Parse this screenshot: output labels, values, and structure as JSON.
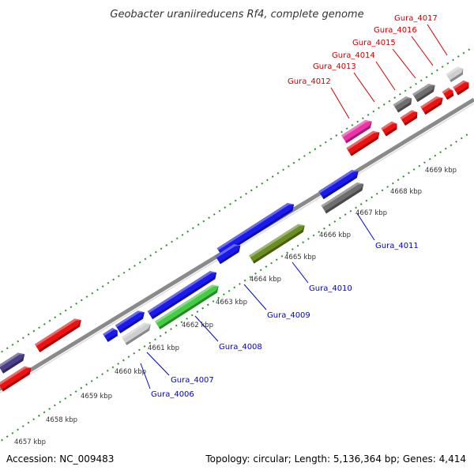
{
  "title": "Geobacter uraniireducens Rf4, complete genome",
  "footer": {
    "accession": "Accession: NC_009483",
    "stats": "Topology: circular; Length: 5,136,364 bp; Genes: 4,414"
  },
  "colors": {
    "background": "#ffffff",
    "backbone": "#8a8a8a",
    "tick": "#2f8f2f",
    "label_blue": "#0000cc",
    "label_red": "#cc0000",
    "leader": "#333333",
    "text": "#333333"
  },
  "scale_labels": [
    "4657 kbp",
    "4658 kbp",
    "4659 kbp",
    "4660 kbp",
    "4661 kbp",
    "4662 kbp",
    "4663 kbp",
    "4664 kbp",
    "4665 kbp",
    "4666 kbp",
    "4667 kbp",
    "4668 kbp",
    "4669 kbp"
  ],
  "gene_labels": [
    {
      "text": "Gura_4006",
      "color": "blue"
    },
    {
      "text": "Gura_4007",
      "color": "blue"
    },
    {
      "text": "Gura_4008",
      "color": "blue"
    },
    {
      "text": "Gura_4009",
      "color": "blue"
    },
    {
      "text": "Gura_4010",
      "color": "blue"
    },
    {
      "text": "Gura_4011",
      "color": "blue"
    },
    {
      "text": "Gura_4012",
      "color": "red"
    },
    {
      "text": "Gura_4013",
      "color": "red"
    },
    {
      "text": "Gura_4014",
      "color": "red"
    },
    {
      "text": "Gura_4015",
      "color": "red"
    },
    {
      "text": "Gura_4016",
      "color": "red"
    },
    {
      "text": "Gura_4017",
      "color": "red"
    }
  ],
  "features": [
    {
      "name": "feature-purple-1",
      "color": "#4b3f8a"
    },
    {
      "name": "feature-red-1",
      "color": "#ee1111"
    },
    {
      "name": "feature-red-2",
      "color": "#ee1111"
    },
    {
      "name": "feature-blue-4006",
      "color": "#1a1aee"
    },
    {
      "name": "feature-blue-4007",
      "color": "#1a1aee"
    },
    {
      "name": "feature-grey-4007",
      "color": "#cfcfcf"
    },
    {
      "name": "feature-blue-4008",
      "color": "#1a1aee"
    },
    {
      "name": "feature-green-4008",
      "color": "#44cc44"
    },
    {
      "name": "feature-blue-4009",
      "color": "#1a1aee"
    },
    {
      "name": "feature-blue-4010",
      "color": "#1a1aee"
    },
    {
      "name": "feature-olive-4010",
      "color": "#6b8e23"
    },
    {
      "name": "feature-blue-4011",
      "color": "#1a1aee"
    },
    {
      "name": "feature-grey-4011",
      "color": "#6e6e6e"
    },
    {
      "name": "feature-red-4012",
      "color": "#ee1111"
    },
    {
      "name": "feature-magenta-4012",
      "color": "#ee33aa"
    },
    {
      "name": "feature-red-4013",
      "color": "#ee1111"
    },
    {
      "name": "feature-red-4014",
      "color": "#ee1111"
    },
    {
      "name": "feature-grey-4014",
      "color": "#6e6e6e"
    },
    {
      "name": "feature-red-4015",
      "color": "#ee1111"
    },
    {
      "name": "feature-grey-4015",
      "color": "#6e6e6e"
    },
    {
      "name": "feature-red-4016",
      "color": "#ee1111"
    },
    {
      "name": "feature-red-4017",
      "color": "#ee1111"
    },
    {
      "name": "feature-lightgrey-4017",
      "color": "#cfcfcf"
    }
  ]
}
